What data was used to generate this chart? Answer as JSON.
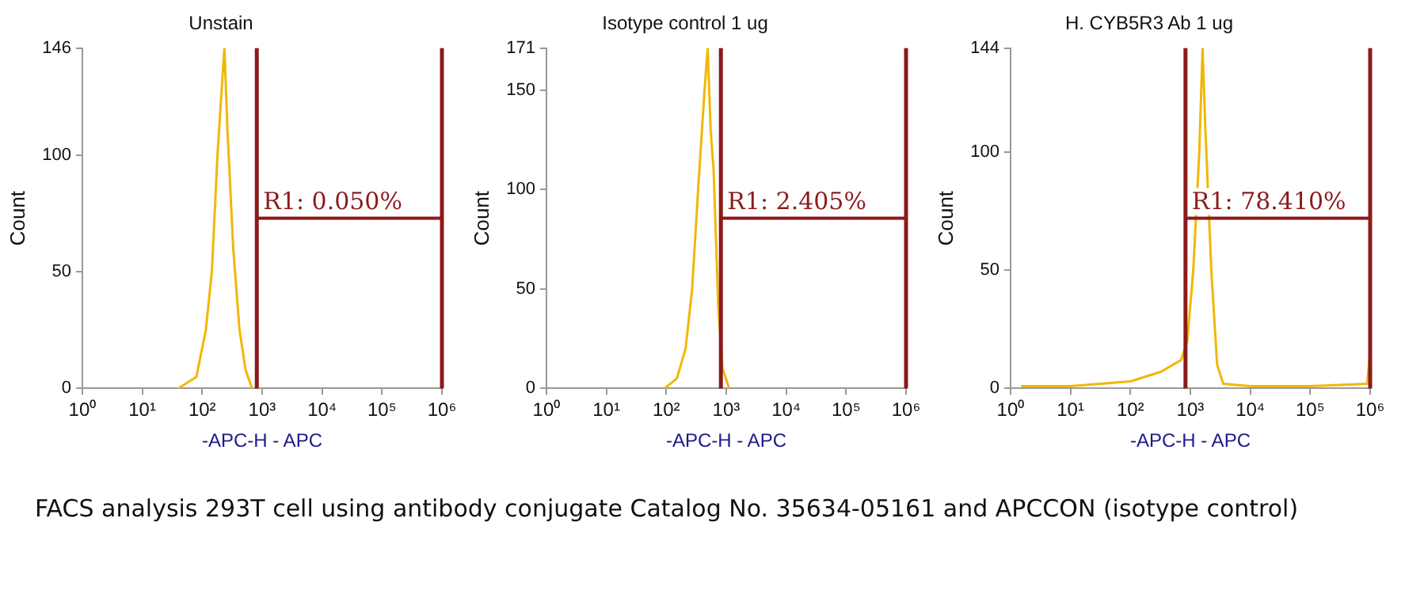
{
  "chart_data": [
    {
      "type": "line",
      "title": "Unstain",
      "xlabel": "-APC-H - APC",
      "ylabel": "Count",
      "log": "x",
      "grid": false,
      "legend": false,
      "marker": "none",
      "xlim": [
        1,
        1000000
      ],
      "xticks": [
        {
          "value": 1,
          "label": "10⁰"
        },
        {
          "value": 10,
          "label": "10¹"
        },
        {
          "value": 100,
          "label": "10²"
        },
        {
          "value": 1000,
          "label": "10³"
        },
        {
          "value": 10000,
          "label": "10⁴"
        },
        {
          "value": 100000,
          "label": "10⁵"
        },
        {
          "value": 1000000,
          "label": "10⁶"
        }
      ],
      "ylim": [
        0,
        146
      ],
      "yticks": [
        0,
        50,
        100,
        146
      ],
      "series": [
        {
          "color": "#f2b705",
          "x": [
            40,
            80,
            115,
            145,
            180,
            220,
            235,
            265,
            330,
            420,
            530,
            680
          ],
          "values": [
            0,
            5,
            25,
            50,
            100,
            135,
            146,
            110,
            60,
            25,
            8,
            0
          ]
        }
      ],
      "ref_lines": [
        {
          "axis": "x",
          "value": 815,
          "color": "#8b1a1a"
        },
        {
          "axis": "x",
          "value": 1000000,
          "color": "#8b1a1a"
        }
      ],
      "annotations": [
        "R1: 0.050%"
      ]
    },
    {
      "type": "line",
      "title": "Isotype control 1 ug",
      "xlabel": "-APC-H - APC",
      "ylabel": "Count",
      "log": "x",
      "grid": false,
      "legend": false,
      "marker": "none",
      "xlim": [
        1,
        1000000
      ],
      "xticks": [
        {
          "value": 1,
          "label": "10⁰"
        },
        {
          "value": 10,
          "label": "10¹"
        },
        {
          "value": 100,
          "label": "10²"
        },
        {
          "value": 1000,
          "label": "10³"
        },
        {
          "value": 10000,
          "label": "10⁴"
        },
        {
          "value": 100000,
          "label": "10⁵"
        },
        {
          "value": 1000000,
          "label": "10⁶"
        }
      ],
      "ylim": [
        0,
        171
      ],
      "yticks": [
        0,
        50,
        100,
        150,
        171
      ],
      "series": [
        {
          "color": "#f2b705",
          "x": [
            93,
            150,
            210,
            270,
            340,
            435,
            490,
            550,
            615,
            740,
            870,
            1120
          ],
          "values": [
            0,
            5,
            20,
            50,
            100,
            150,
            171,
            130,
            110,
            40,
            10,
            0
          ]
        }
      ],
      "ref_lines": [
        {
          "axis": "x",
          "value": 815,
          "color": "#8b1a1a"
        },
        {
          "axis": "x",
          "value": 1000000,
          "color": "#8b1a1a"
        }
      ],
      "annotations": [
        "R1: 2.405%"
      ]
    },
    {
      "type": "line",
      "title": "H. CYB5R3 Ab 1 ug",
      "xlabel": "-APC-H - APC",
      "ylabel": "Count",
      "log": "x",
      "grid": false,
      "legend": false,
      "marker": "none",
      "xlim": [
        1,
        1000000
      ],
      "xticks": [
        {
          "value": 1,
          "label": "10⁰"
        },
        {
          "value": 10,
          "label": "10¹"
        },
        {
          "value": 100,
          "label": "10²"
        },
        {
          "value": 1000,
          "label": "10³"
        },
        {
          "value": 10000,
          "label": "10⁴"
        },
        {
          "value": 100000,
          "label": "10⁵"
        },
        {
          "value": 1000000,
          "label": "10⁶"
        }
      ],
      "ylim": [
        0,
        144
      ],
      "yticks": [
        0,
        50,
        100,
        144
      ],
      "series": [
        {
          "color": "#f2b705",
          "x": [
            1.5,
            10,
            100,
            320,
            700,
            890,
            1120,
            1410,
            1600,
            1780,
            2240,
            2800,
            3550,
            10000,
            100000,
            890000,
            1000000
          ],
          "values": [
            1,
            1,
            3,
            7,
            12,
            20,
            50,
            100,
            144,
            110,
            50,
            10,
            2,
            1,
            1,
            2,
            15
          ]
        }
      ],
      "ref_lines": [
        {
          "axis": "x",
          "value": 830,
          "color": "#8b1a1a"
        },
        {
          "axis": "x",
          "value": 1000000,
          "color": "#8b1a1a"
        }
      ],
      "annotations": [
        "R1: 78.410%",
        "FACS analysis 293T cell using antibody conjugate Catalog No. 35634-05161 and APCCON (isotype control)"
      ]
    }
  ]
}
